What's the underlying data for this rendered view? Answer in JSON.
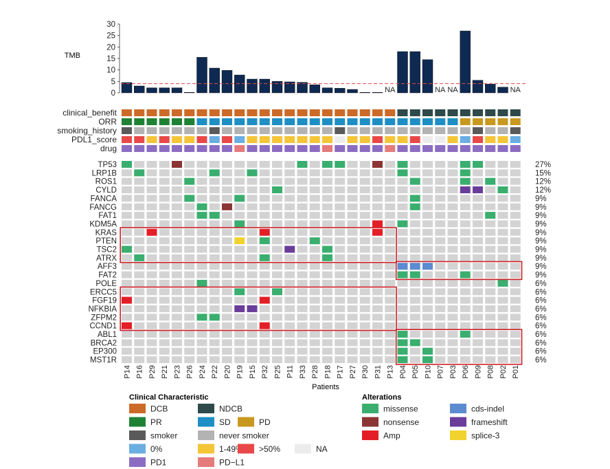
{
  "chart_data": {
    "type": "heatmap",
    "subtype": "oncoprint",
    "patients": [
      "P14",
      "P16",
      "P29",
      "P21",
      "P23",
      "P26",
      "P24",
      "P22",
      "P20",
      "P19",
      "P15",
      "P32",
      "P25",
      "P11",
      "P33",
      "P28",
      "P18",
      "P17",
      "P27",
      "P30",
      "P31",
      "P13",
      "P04",
      "P05",
      "P10",
      "P07",
      "P03",
      "P06",
      "P09",
      "P08",
      "P02",
      "P01"
    ],
    "x_label": "Patients",
    "tmb": {
      "label": "TMB",
      "values": [
        4.5,
        3.0,
        2.2,
        2.2,
        2.2,
        0.2,
        15.5,
        10.8,
        9.8,
        7.8,
        6.0,
        6.0,
        5.0,
        4.8,
        4.6,
        3.5,
        2.2,
        2.0,
        1.5,
        0.2,
        0.2,
        null,
        18.0,
        18.0,
        14.5,
        null,
        null,
        27.0,
        5.5,
        3.8,
        2.5,
        null
      ],
      "y_ticks": [
        0,
        5,
        10,
        15,
        20,
        25,
        30
      ],
      "ylim": [
        0,
        30
      ],
      "threshold": 4,
      "na_label": "NA"
    },
    "clinical_tracks": [
      {
        "name": "clinical_benefit",
        "values": [
          "DCB",
          "DCB",
          "DCB",
          "DCB",
          "DCB",
          "DCB",
          "DCB",
          "DCB",
          "DCB",
          "DCB",
          "DCB",
          "DCB",
          "DCB",
          "DCB",
          "DCB",
          "DCB",
          "DCB",
          "DCB",
          "DCB",
          "DCB",
          "DCB",
          "DCB",
          "NDCB",
          "NDCB",
          "NDCB",
          "NDCB",
          "NDCB",
          "NDCB",
          "NDCB",
          "NDCB",
          "NDCB",
          "NDCB"
        ]
      },
      {
        "name": "ORR",
        "values": [
          "PR",
          "PR",
          "PR",
          "PR",
          "PR",
          "PR",
          "SD",
          "SD",
          "SD",
          "SD",
          "SD",
          "SD",
          "SD",
          "SD",
          "SD",
          "SD",
          "SD",
          "SD",
          "SD",
          "SD",
          "SD",
          "SD",
          "SD",
          "SD",
          "SD",
          "SD",
          "SD",
          "PD",
          "PD",
          "PD",
          "PD",
          "PD"
        ]
      },
      {
        "name": "smoking_history",
        "values": [
          "smoker",
          "never",
          "never",
          "never",
          "never",
          "never",
          "never",
          "smoker",
          "never",
          "never",
          "never",
          "never",
          "never",
          "never",
          "never",
          "never",
          "never",
          "smoker",
          "never",
          "never",
          "never",
          "never",
          "never",
          "never",
          "never",
          "never",
          "never",
          "never",
          "smoker",
          "never",
          "never",
          "smoker"
        ]
      },
      {
        "name": "PDL1_score",
        "values": [
          ">50%",
          ">50%",
          "1-49%",
          ">50%",
          "1-49%",
          "1-49%",
          ">50%",
          "0%",
          ">50%",
          "0%",
          "1-49%",
          "1-49%",
          "1-49%",
          "1-49%",
          "1-49%",
          "1-49%",
          "1-49%",
          "NA",
          "1-49%",
          "1-49%",
          ">50%",
          "1-49%",
          "1-49%",
          ">50%",
          "NA",
          "NA",
          "1-49%",
          "0%",
          ">50%",
          "1-49%",
          "1-49%",
          "0%"
        ]
      },
      {
        "name": "drug",
        "values": [
          "PD1",
          "PD1",
          "PD1",
          "PD1",
          "PD1",
          "PD1",
          "PD1",
          "PD1",
          "PD1",
          "PD-L1",
          "PD1",
          "PD1",
          "PD1",
          "PD1",
          "PD1",
          "PD1",
          "PD-L1",
          "PD1",
          "PD1",
          "PD1",
          "PD1",
          "PD-L1",
          "PD1",
          "PD1",
          "PD1",
          "PD1",
          "PD1",
          "PD1",
          "PD1",
          "PD1",
          "PD1",
          "PD1"
        ]
      }
    ],
    "genes": [
      {
        "name": "TP53",
        "pct": "27%",
        "alts": {
          "P14": "missense",
          "P23": "nonsense",
          "P33": "missense",
          "P18": "missense",
          "P17": "missense",
          "P31": "nonsense",
          "P04": "missense",
          "P06": "missense",
          "P09": "missense"
        }
      },
      {
        "name": "LRP1B",
        "pct": "15%",
        "alts": {
          "P16": "missense",
          "P22": "missense",
          "P15": "missense",
          "P04": "missense",
          "P06": "missense"
        }
      },
      {
        "name": "ROS1",
        "pct": "12%",
        "alts": {
          "P26": "missense",
          "P05": "missense",
          "P06": "missense",
          "P08": "missense"
        }
      },
      {
        "name": "CYLD",
        "pct": "12%",
        "alts": {
          "P25": "missense",
          "P06": "frameshift",
          "P09": "frameshift",
          "P02": "missense"
        }
      },
      {
        "name": "FANCA",
        "pct": "9%",
        "alts": {
          "P26": "missense",
          "P19": "missense",
          "P05": "missense"
        }
      },
      {
        "name": "FANCG",
        "pct": "9%",
        "alts": {
          "P24": "missense",
          "P20": "nonsense",
          "P05": "missense"
        }
      },
      {
        "name": "FAT1",
        "pct": "9%",
        "alts": {
          "P24": "missense",
          "P22": "missense",
          "P08": "missense"
        }
      },
      {
        "name": "KDM5A",
        "pct": "9%",
        "alts": {
          "P19": "missense",
          "P31": "Amp",
          "P04": "missense"
        }
      },
      {
        "name": "KRAS",
        "pct": "9%",
        "alts": {
          "P29": "Amp",
          "P32": "Amp",
          "P31": "Amp"
        }
      },
      {
        "name": "PTEN",
        "pct": "9%",
        "alts": {
          "P19": "splice-3",
          "P32": "missense",
          "P28": "missense"
        }
      },
      {
        "name": "TSC2",
        "pct": "9%",
        "alts": {
          "P14": "missense",
          "P11": "frameshift",
          "P18": "missense"
        }
      },
      {
        "name": "ATRX",
        "pct": "9%",
        "alts": {
          "P16": "missense",
          "P32": "missense",
          "P18": "missense"
        }
      },
      {
        "name": "AFF3",
        "pct": "9%",
        "alts": {
          "P04": "cds-indel",
          "P05": "cds-indel",
          "P10": "cds-indel"
        }
      },
      {
        "name": "FAT2",
        "pct": "9%",
        "alts": {
          "P04": "missense",
          "P05": "missense",
          "P06": "missense"
        }
      },
      {
        "name": "POLE",
        "pct": "6%",
        "alts": {
          "P24": "missense",
          "P02": "missense"
        }
      },
      {
        "name": "ERCC5",
        "pct": "6%",
        "alts": {
          "P19": "missense",
          "P25": "missense"
        }
      },
      {
        "name": "FGF19",
        "pct": "6%",
        "alts": {
          "P14": "Amp",
          "P32": "Amp"
        }
      },
      {
        "name": "NFKBIA",
        "pct": "6%",
        "alts": {
          "P19": "frameshift",
          "P15": "frameshift"
        }
      },
      {
        "name": "ZFPM2",
        "pct": "6%",
        "alts": {
          "P24": "missense",
          "P22": "missense"
        }
      },
      {
        "name": "CCND1",
        "pct": "6%",
        "alts": {
          "P14": "Amp",
          "P32": "Amp"
        }
      },
      {
        "name": "ABL1",
        "pct": "6%",
        "alts": {
          "P04": "missense",
          "P06": "missense"
        }
      },
      {
        "name": "BRCA2",
        "pct": "6%",
        "alts": {
          "P04": "missense",
          "P05": "missense"
        }
      },
      {
        "name": "EP300",
        "pct": "6%",
        "alts": {
          "P04": "missense",
          "P10": "missense"
        }
      },
      {
        "name": "MST1R",
        "pct": "6%",
        "alts": {
          "P04": "missense",
          "P10": "missense"
        }
      }
    ],
    "highlight_boxes": [
      {
        "genes": [
          "KRAS",
          "ATRX"
        ],
        "patients": [
          "P14",
          "P13"
        ]
      },
      {
        "genes": [
          "AFF3",
          "FAT2"
        ],
        "patients": [
          "P04",
          "P01"
        ]
      },
      {
        "genes": [
          "ERCC5",
          "CCND1"
        ],
        "patients": [
          "P14",
          "P13"
        ]
      },
      {
        "genes": [
          "ABL1",
          "MST1R"
        ],
        "patients": [
          "P04",
          "P01"
        ]
      }
    ],
    "legend_clinical": {
      "title": "Clinical Characteristic",
      "rows": [
        [
          {
            "key": "DCB",
            "label": "DCB"
          },
          {
            "key": "NDCB",
            "label": "NDCB"
          }
        ],
        [
          {
            "key": "PR",
            "label": "PR"
          },
          {
            "key": "SD",
            "label": "SD"
          },
          {
            "key": "PD",
            "label": "PD"
          }
        ],
        [
          {
            "key": "smoker",
            "label": "smoker"
          },
          {
            "key": "never",
            "label": "never smoker"
          }
        ],
        [
          {
            "key": "0%",
            "label": "0%"
          },
          {
            "key": "1-49%",
            "label": "1-49%"
          },
          {
            "key": ">50%",
            "label": ">50%"
          },
          {
            "key": "NA",
            "label": "NA"
          }
        ],
        [
          {
            "key": "PD1",
            "label": "PD1"
          },
          {
            "key": "PD-L1",
            "label": "PD−L1"
          }
        ]
      ]
    },
    "legend_alterations": {
      "title": "Alterations",
      "rows": [
        [
          {
            "key": "missense",
            "label": "missense"
          },
          {
            "key": "cds-indel",
            "label": "cds-indel"
          }
        ],
        [
          {
            "key": "nonsense",
            "label": "nonsense"
          },
          {
            "key": "frameshift",
            "label": "frameshift"
          }
        ],
        [
          {
            "key": "Amp",
            "label": "Amp"
          },
          {
            "key": "splice-3",
            "label": "splice-3"
          }
        ]
      ]
    },
    "colors": {
      "bar": "#0f2a52",
      "threshold_line": "#e8464a",
      "box": "#cc1f27",
      "empty_cell": "#d3d3d3",
      "DCB": "#cc6a27",
      "NDCB": "#2e4a4a",
      "PR": "#1e8234",
      "SD": "#1e8fc4",
      "PD": "#c8991e",
      "smoker": "#5a5a5a",
      "never": "#b3b3b3",
      "0%": "#6aaee2",
      "1-49%": "#f5c538",
      ">50%": "#e94848",
      "NA": "#ececec",
      "PD1": "#8c6cc2",
      "PD-L1": "#e57b7b",
      "missense": "#3aae6e",
      "nonsense": "#8b3434",
      "Amp": "#e41e26",
      "cds-indel": "#5b8bd0",
      "frameshift": "#6a3d9a",
      "splice-3": "#f2d22e"
    }
  }
}
